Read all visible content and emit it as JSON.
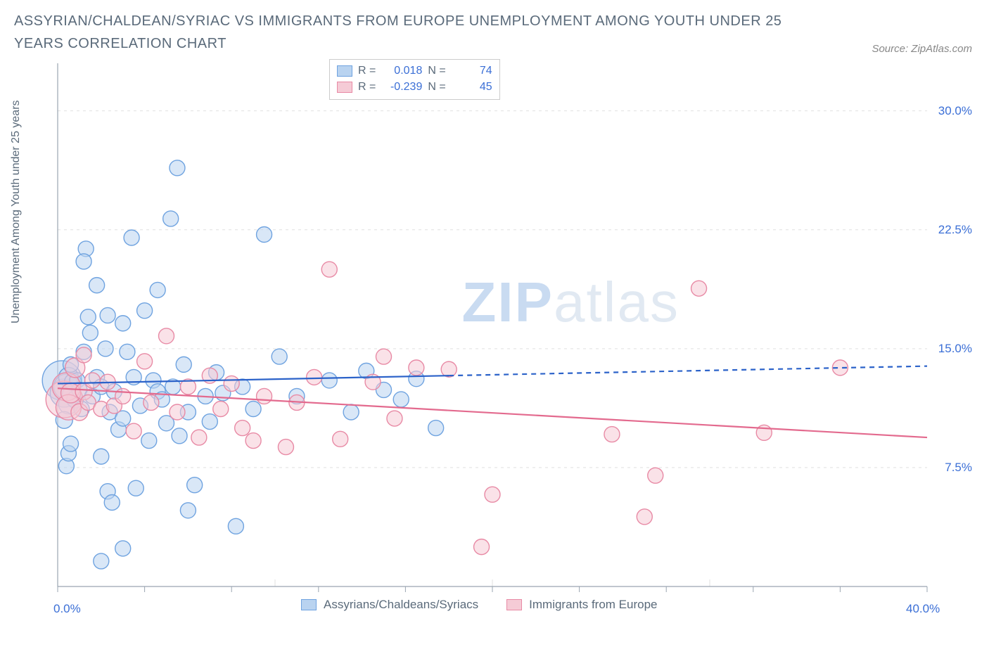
{
  "title": "ASSYRIAN/CHALDEAN/SYRIAC VS IMMIGRANTS FROM EUROPE UNEMPLOYMENT AMONG YOUTH UNDER 25 YEARS CORRELATION CHART",
  "source_label": "Source: ZipAtlas.com",
  "ylabel": "Unemployment Among Youth under 25 years",
  "watermark_a": "ZIP",
  "watermark_b": "atlas",
  "chart": {
    "type": "scatter",
    "background_color": "#ffffff",
    "grid_color": "#e0e0e0",
    "axis_color": "#9aa5b1",
    "axis_label_color": "#3b6fd6",
    "ylabel_color": "#5a6a7a",
    "xlim": [
      0,
      40
    ],
    "ylim": [
      0,
      33
    ],
    "xticks": [
      0,
      40
    ],
    "xtick_labels": [
      "0.0%",
      "40.0%"
    ],
    "yticks": [
      7.5,
      15.0,
      22.5,
      30.0
    ],
    "ytick_labels": [
      "7.5%",
      "15.0%",
      "22.5%",
      "30.0%"
    ],
    "marker_radius": 11,
    "marker_opacity": 0.55,
    "marker_stroke_width": 1.4,
    "trend_line_width": 2.2,
    "series": [
      {
        "id": "assyrian",
        "label": "Assyrians/Chaldeans/Syriacs",
        "fill": "#b9d3f0",
        "stroke": "#6fa3e0",
        "line_color": "#2b62c9",
        "r": 0.018,
        "n": 74,
        "trend": {
          "x1": 0,
          "y1": 12.8,
          "x2": 18,
          "y2": 13.3,
          "x_dash_end": 40,
          "y_dash_end": 13.9
        },
        "points": [
          [
            0.2,
            13.0,
            28
          ],
          [
            0.3,
            12.2,
            20
          ],
          [
            0.4,
            12.6,
            18
          ],
          [
            0.5,
            11.5,
            14
          ],
          [
            0.5,
            13.2,
            14
          ],
          [
            0.3,
            10.5,
            12
          ],
          [
            0.6,
            12.1,
            12
          ],
          [
            0.7,
            12.9,
            12
          ],
          [
            0.8,
            11.8,
            12
          ],
          [
            0.9,
            13.0,
            11
          ],
          [
            1.0,
            12.4,
            11
          ],
          [
            1.1,
            11.2,
            11
          ],
          [
            0.4,
            7.6,
            11
          ],
          [
            0.5,
            8.4,
            11
          ],
          [
            1.2,
            14.8,
            11
          ],
          [
            1.3,
            21.3,
            11
          ],
          [
            1.4,
            17.0,
            11
          ],
          [
            1.5,
            16.0,
            11
          ],
          [
            0.6,
            9.0,
            11
          ],
          [
            1.6,
            12.0,
            11
          ],
          [
            1.8,
            13.2,
            11
          ],
          [
            2.0,
            12.6,
            11
          ],
          [
            2.0,
            8.2,
            11
          ],
          [
            2.2,
            15.0,
            11
          ],
          [
            2.3,
            17.1,
            11
          ],
          [
            2.3,
            6.0,
            11
          ],
          [
            2.4,
            11.0,
            11
          ],
          [
            2.5,
            5.3,
            11
          ],
          [
            2.6,
            12.3,
            11
          ],
          [
            2.8,
            9.9,
            11
          ],
          [
            3.0,
            10.6,
            11
          ],
          [
            3.0,
            16.6,
            11
          ],
          [
            3.2,
            14.8,
            11
          ],
          [
            3.4,
            22.0,
            11
          ],
          [
            3.5,
            13.2,
            11
          ],
          [
            3.6,
            6.2,
            11
          ],
          [
            3.8,
            11.4,
            11
          ],
          [
            4.0,
            17.4,
            11
          ],
          [
            4.2,
            9.2,
            11
          ],
          [
            4.4,
            13.0,
            11
          ],
          [
            4.6,
            12.3,
            11
          ],
          [
            4.6,
            18.7,
            11
          ],
          [
            4.8,
            11.8,
            11
          ],
          [
            5.0,
            10.3,
            11
          ],
          [
            5.2,
            23.2,
            11
          ],
          [
            5.3,
            12.6,
            11
          ],
          [
            5.5,
            26.4,
            11
          ],
          [
            5.6,
            9.5,
            11
          ],
          [
            5.8,
            14.0,
            11
          ],
          [
            6.0,
            11.0,
            11
          ],
          [
            6.0,
            4.8,
            11
          ],
          [
            6.3,
            6.4,
            11
          ],
          [
            6.8,
            12.0,
            11
          ],
          [
            7.0,
            10.4,
            11
          ],
          [
            7.3,
            13.5,
            11
          ],
          [
            7.6,
            12.2,
            11
          ],
          [
            8.2,
            3.8,
            11
          ],
          [
            8.5,
            12.6,
            11
          ],
          [
            9.0,
            11.2,
            11
          ],
          [
            9.5,
            22.2,
            11
          ],
          [
            10.2,
            14.5,
            11
          ],
          [
            11.0,
            12.0,
            11
          ],
          [
            12.5,
            13.0,
            11
          ],
          [
            13.5,
            11.0,
            11
          ],
          [
            14.2,
            13.6,
            11
          ],
          [
            15.0,
            12.4,
            11
          ],
          [
            15.8,
            11.8,
            11
          ],
          [
            16.5,
            13.1,
            11
          ],
          [
            17.4,
            10.0,
            11
          ],
          [
            2.0,
            1.6,
            11
          ],
          [
            3.0,
            2.4,
            11
          ],
          [
            1.8,
            19.0,
            11
          ],
          [
            1.2,
            20.5,
            11
          ],
          [
            0.6,
            14.0,
            11
          ]
        ]
      },
      {
        "id": "europe",
        "label": "Immigrants from Europe",
        "fill": "#f5cbd6",
        "stroke": "#e88aa5",
        "line_color": "#e36a8e",
        "r": -0.239,
        "n": 45,
        "trend": {
          "x1": 0,
          "y1": 12.5,
          "x2": 40,
          "y2": 9.4,
          "x_dash_end": 40,
          "y_dash_end": 9.4
        },
        "points": [
          [
            0.3,
            11.8,
            26
          ],
          [
            0.4,
            12.6,
            20
          ],
          [
            0.5,
            11.3,
            18
          ],
          [
            0.6,
            12.2,
            14
          ],
          [
            0.8,
            13.8,
            14
          ],
          [
            1.0,
            11.0,
            12
          ],
          [
            1.2,
            12.3,
            12
          ],
          [
            1.4,
            11.6,
            11
          ],
          [
            1.6,
            13.0,
            11
          ],
          [
            2.0,
            11.2,
            11
          ],
          [
            2.3,
            12.9,
            11
          ],
          [
            2.6,
            11.4,
            11
          ],
          [
            3.0,
            12.0,
            11
          ],
          [
            3.5,
            9.8,
            11
          ],
          [
            4.0,
            14.2,
            11
          ],
          [
            4.3,
            11.6,
            11
          ],
          [
            5.0,
            15.8,
            11
          ],
          [
            5.5,
            11.0,
            11
          ],
          [
            6.0,
            12.6,
            11
          ],
          [
            6.5,
            9.4,
            11
          ],
          [
            7.0,
            13.3,
            11
          ],
          [
            7.5,
            11.2,
            11
          ],
          [
            8.0,
            12.8,
            11
          ],
          [
            8.5,
            10.0,
            11
          ],
          [
            9.0,
            9.2,
            11
          ],
          [
            9.5,
            12.0,
            11
          ],
          [
            10.5,
            8.8,
            11
          ],
          [
            11.0,
            11.6,
            11
          ],
          [
            11.8,
            13.2,
            11
          ],
          [
            12.5,
            20.0,
            11
          ],
          [
            13.0,
            9.3,
            11
          ],
          [
            14.5,
            12.9,
            11
          ],
          [
            15.0,
            14.5,
            11
          ],
          [
            15.5,
            10.6,
            11
          ],
          [
            16.5,
            13.8,
            11
          ],
          [
            18.0,
            13.7,
            11
          ],
          [
            19.5,
            2.5,
            11
          ],
          [
            20.0,
            5.8,
            11
          ],
          [
            25.5,
            9.6,
            11
          ],
          [
            27.0,
            4.4,
            11
          ],
          [
            27.5,
            7.0,
            11
          ],
          [
            29.5,
            18.8,
            11
          ],
          [
            32.5,
            9.7,
            11
          ],
          [
            36.0,
            13.8,
            11
          ],
          [
            1.2,
            14.6,
            11
          ]
        ]
      }
    ],
    "legend_swatch_size": 22
  },
  "stats_labels": {
    "r": "R =",
    "n": "N ="
  }
}
